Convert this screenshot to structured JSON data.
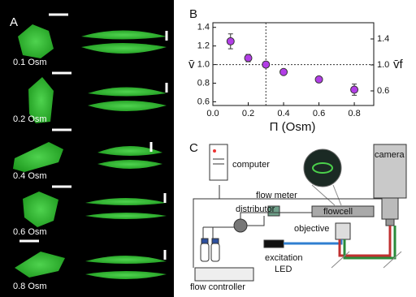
{
  "panel_a": {
    "letter": "A",
    "labels": [
      "0.1 Osm",
      "0.2 Osm",
      "0.4 Osm",
      "0.6 Osm",
      "0.8 Osm"
    ]
  },
  "chart_data": {
    "type": "scatter",
    "letter": "B",
    "x_label": "Π (Osm)",
    "y_label": "v̄",
    "y2_label": "v̄f",
    "x": [
      0.1,
      0.2,
      0.3,
      0.4,
      0.6,
      0.8
    ],
    "series": [
      {
        "color": "#b23ee6",
        "values": [
          1.25,
          1.07,
          1.0,
          0.92,
          0.84,
          0.73
        ],
        "errors": [
          0.08,
          0.04,
          0.02,
          0.02,
          0.03,
          0.06
        ]
      }
    ],
    "xlim": [
      0,
      0.91
    ],
    "ylim": [
      0.56,
      1.45
    ],
    "y2lim": [
      0.375,
      1.65
    ],
    "xticks": [
      {
        "value": 0,
        "label": "0.0"
      },
      0.2,
      0.4,
      0.6,
      0.8
    ],
    "yticks": [
      0.6,
      0.8,
      {
        "value": 1,
        "label": "1.0"
      },
      1.2,
      1.4
    ],
    "y2ticks": [
      0.6,
      {
        "value": 1,
        "label": "1.0"
      },
      1.4
    ],
    "reference_lines": {
      "x": 0.3,
      "y": 1
    }
  },
  "panel_c": {
    "letter": "C",
    "computer": "computer",
    "flow_meter": "flow meter",
    "distributor": "distributor",
    "flowcell": "flowcell",
    "objective": "objective",
    "camera": "camera",
    "led": [
      "excitation",
      "LED"
    ],
    "flow_controller": "flow controller"
  }
}
